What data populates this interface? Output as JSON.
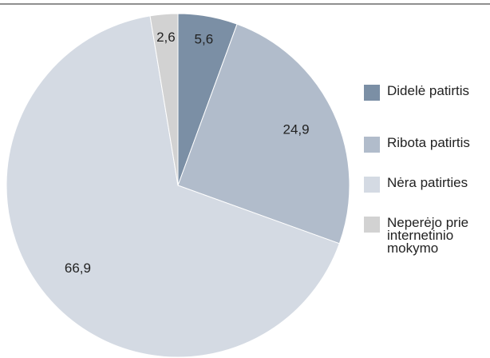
{
  "chart_data": {
    "type": "pie",
    "categories": [
      "Didelė patirtis",
      "Ribota patirtis",
      "Nėra patirties",
      "Neperėjo prie internetinio mokymo"
    ],
    "values": [
      5.6,
      24.9,
      66.9,
      2.6
    ],
    "value_labels": [
      "5,6",
      "24,9",
      "66,9",
      "2,6"
    ],
    "colors": [
      "#7b8fa5",
      "#b1bccb",
      "#d4dae3",
      "#d2d2d2"
    ],
    "legend": "right"
  }
}
